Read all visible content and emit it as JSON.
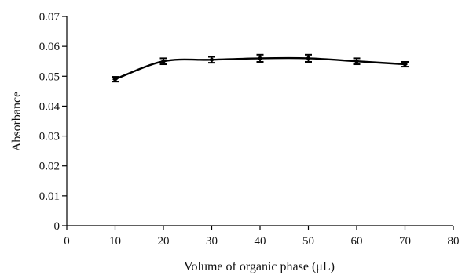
{
  "chart_data": {
    "type": "line",
    "title": "",
    "xlabel": "Volume of organic phase (μL)",
    "ylabel": "Absorbance",
    "xlim": [
      0,
      80
    ],
    "ylim": [
      0,
      0.07
    ],
    "x_ticks": [
      "0",
      "10",
      "20",
      "30",
      "40",
      "50",
      "60",
      "70",
      "80"
    ],
    "y_ticks": [
      "0",
      "0.01",
      "0.02",
      "0.03",
      "0.04",
      "0.05",
      "0.06",
      "0.07"
    ],
    "grid": false,
    "legend": "none",
    "line_style": "smooth",
    "colors": {
      "line": "#000000",
      "axis": "#000000"
    },
    "series": [
      {
        "x": [
          10,
          20,
          30,
          40,
          50,
          60,
          70
        ],
        "y": [
          0.049,
          0.055,
          0.0555,
          0.056,
          0.056,
          0.055,
          0.054
        ],
        "error": [
          0.0008,
          0.001,
          0.001,
          0.0012,
          0.0012,
          0.001,
          0.0008
        ]
      }
    ]
  }
}
